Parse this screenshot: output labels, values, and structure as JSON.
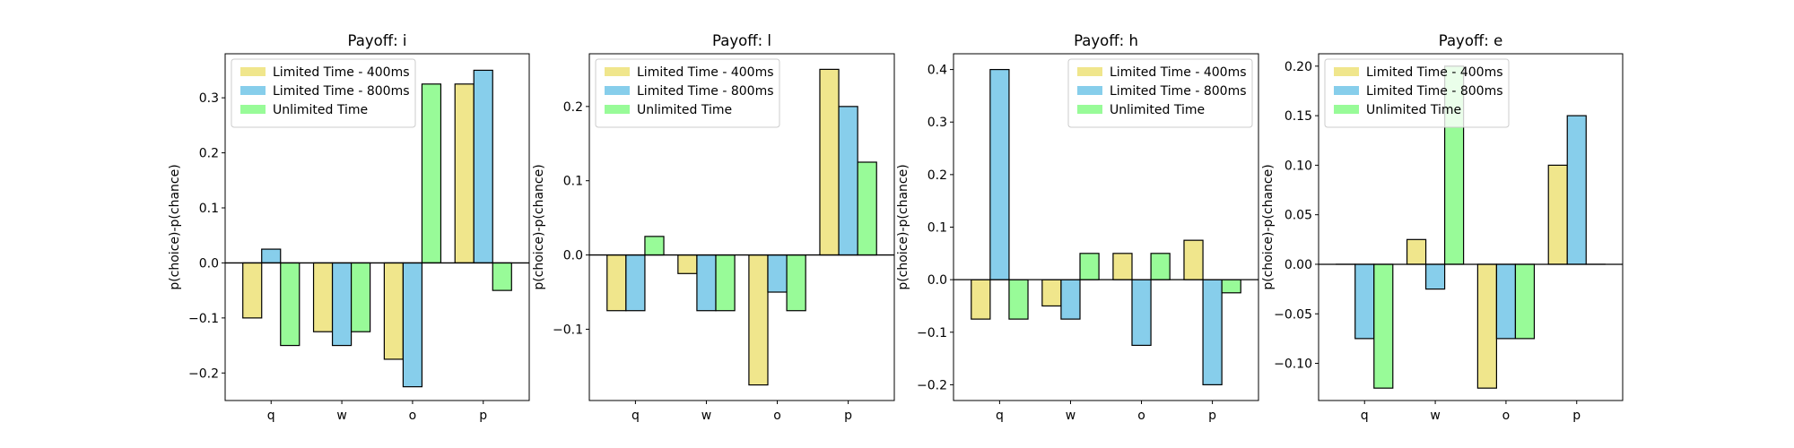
{
  "chart_data": [
    {
      "type": "bar",
      "title": "Payoff: i",
      "xlabel": "",
      "ylabel": "p(choice)-p(chance)",
      "categories": [
        "q",
        "w",
        "o",
        "p"
      ],
      "series": [
        {
          "name": "Limited Time - 400ms",
          "values": [
            -0.1,
            -0.125,
            -0.175,
            0.325
          ]
        },
        {
          "name": "Limited Time - 800ms",
          "values": [
            0.025,
            -0.15,
            -0.225,
            0.35
          ]
        },
        {
          "name": "Unlimited Time",
          "values": [
            -0.15,
            -0.125,
            0.325,
            -0.05
          ]
        }
      ],
      "ylim": [
        -0.25,
        0.38
      ],
      "yticks": [
        -0.2,
        -0.1,
        0.0,
        0.1,
        0.2,
        0.3
      ],
      "ytick_labels": [
        "−0.2",
        "−0.1",
        "0.0",
        "0.1",
        "0.2",
        "0.3"
      ],
      "legend_position": "top-left"
    },
    {
      "type": "bar",
      "title": "Payoff: l",
      "xlabel": "",
      "ylabel": "p(choice)-p(chance)",
      "categories": [
        "q",
        "w",
        "o",
        "p"
      ],
      "series": [
        {
          "name": "Limited Time - 400ms",
          "values": [
            -0.075,
            -0.025,
            -0.175,
            0.25
          ]
        },
        {
          "name": "Limited Time - 800ms",
          "values": [
            -0.075,
            -0.075,
            -0.05,
            0.2
          ]
        },
        {
          "name": "Unlimited Time",
          "values": [
            0.025,
            -0.075,
            -0.075,
            0.125
          ]
        }
      ],
      "ylim": [
        -0.196,
        0.271
      ],
      "yticks": [
        -0.1,
        0.0,
        0.1,
        0.2
      ],
      "ytick_labels": [
        "−0.1",
        "0.0",
        "0.1",
        "0.2"
      ],
      "legend_position": "top-left"
    },
    {
      "type": "bar",
      "title": "Payoff: h",
      "xlabel": "",
      "ylabel": "p(choice)-p(chance)",
      "categories": [
        "q",
        "w",
        "o",
        "p"
      ],
      "series": [
        {
          "name": "Limited Time - 400ms",
          "values": [
            -0.075,
            -0.05,
            0.05,
            0.075
          ]
        },
        {
          "name": "Limited Time - 800ms",
          "values": [
            0.4,
            -0.075,
            -0.125,
            -0.2
          ]
        },
        {
          "name": "Unlimited Time",
          "values": [
            -0.075,
            0.05,
            0.05,
            -0.025
          ]
        }
      ],
      "ylim": [
        -0.23,
        0.43
      ],
      "yticks": [
        -0.2,
        -0.1,
        0.0,
        0.1,
        0.2,
        0.3,
        0.4
      ],
      "ytick_labels": [
        "−0.2",
        "−0.1",
        "0.0",
        "0.1",
        "0.2",
        "0.3",
        "0.4"
      ],
      "legend_position": "top-right"
    },
    {
      "type": "bar",
      "title": "Payoff: e",
      "xlabel": "",
      "ylabel": "p(choice)-p(chance)",
      "categories": [
        "q",
        "w",
        "o",
        "p"
      ],
      "series": [
        {
          "name": "Limited Time - 400ms",
          "values": [
            0.0,
            0.025,
            -0.125,
            0.1
          ]
        },
        {
          "name": "Limited Time - 800ms",
          "values": [
            -0.075,
            -0.025,
            -0.075,
            0.15
          ]
        },
        {
          "name": "Unlimited Time",
          "values": [
            -0.125,
            0.2,
            -0.075,
            0.0
          ]
        }
      ],
      "ylim": [
        -0.1375,
        0.2125
      ],
      "yticks": [
        -0.1,
        -0.05,
        0.0,
        0.05,
        0.1,
        0.15,
        0.2
      ],
      "ytick_labels": [
        "−0.10",
        "−0.05",
        "0.00",
        "0.05",
        "0.10",
        "0.15",
        "0.20"
      ],
      "legend_position": "top-left"
    }
  ],
  "colors": {
    "series": [
      "#f0e68c",
      "#87ceeb",
      "#98fb98"
    ],
    "edge": "#000000",
    "zero_line": "#000000",
    "axes": "#000000"
  }
}
